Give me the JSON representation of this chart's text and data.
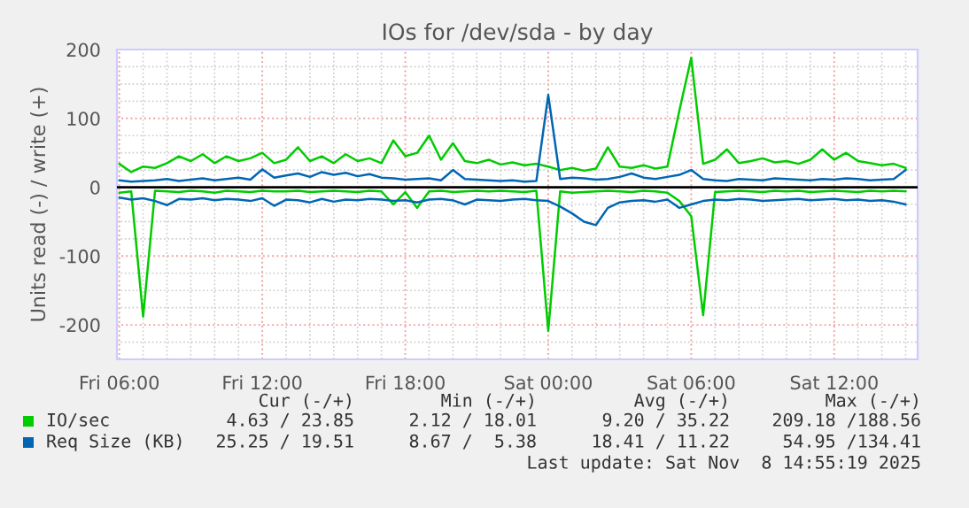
{
  "chart_data": {
    "type": "line",
    "title": "IOs for /dev/sda - by day",
    "ylabel": "Units read (-) / write (+)",
    "x": [
      "2025-11-07T06:00",
      "2025-11-07T06:30",
      "2025-11-07T07:00",
      "2025-11-07T07:30",
      "2025-11-07T08:00",
      "2025-11-07T08:30",
      "2025-11-07T09:00",
      "2025-11-07T09:30",
      "2025-11-07T10:00",
      "2025-11-07T10:30",
      "2025-11-07T11:00",
      "2025-11-07T11:30",
      "2025-11-07T12:00",
      "2025-11-07T12:30",
      "2025-11-07T13:00",
      "2025-11-07T13:30",
      "2025-11-07T14:00",
      "2025-11-07T14:30",
      "2025-11-07T15:00",
      "2025-11-07T15:30",
      "2025-11-07T16:00",
      "2025-11-07T16:30",
      "2025-11-07T17:00",
      "2025-11-07T17:30",
      "2025-11-07T18:00",
      "2025-11-07T18:30",
      "2025-11-07T19:00",
      "2025-11-07T19:30",
      "2025-11-07T20:00",
      "2025-11-07T20:30",
      "2025-11-07T21:00",
      "2025-11-07T21:30",
      "2025-11-07T22:00",
      "2025-11-07T22:30",
      "2025-11-07T23:00",
      "2025-11-07T23:30",
      "2025-11-08T00:00",
      "2025-11-08T00:30",
      "2025-11-08T01:00",
      "2025-11-08T01:30",
      "2025-11-08T02:00",
      "2025-11-08T02:30",
      "2025-11-08T03:00",
      "2025-11-08T03:30",
      "2025-11-08T04:00",
      "2025-11-08T04:30",
      "2025-11-08T05:00",
      "2025-11-08T05:30",
      "2025-11-08T06:00",
      "2025-11-08T06:30",
      "2025-11-08T07:00",
      "2025-11-08T07:30",
      "2025-11-08T08:00",
      "2025-11-08T08:30",
      "2025-11-08T09:00",
      "2025-11-08T09:30",
      "2025-11-08T10:00",
      "2025-11-08T10:30",
      "2025-11-08T11:00",
      "2025-11-08T11:30",
      "2025-11-08T12:00",
      "2025-11-08T12:30",
      "2025-11-08T13:00",
      "2025-11-08T13:30",
      "2025-11-08T14:00",
      "2025-11-08T14:30",
      "2025-11-08T15:00"
    ],
    "series": [
      {
        "name": "IO/sec",
        "color": "#00cc00",
        "values": [
          34,
          22,
          30,
          28,
          35,
          45,
          38,
          48,
          35,
          45,
          38,
          42,
          50,
          35,
          40,
          58,
          38,
          45,
          35,
          48,
          38,
          42,
          35,
          68,
          45,
          50,
          75,
          40,
          64,
          38,
          35,
          40,
          33,
          36,
          32,
          34,
          30,
          25,
          28,
          24,
          27,
          58,
          30,
          28,
          32,
          27,
          30,
          111,
          188,
          34,
          40,
          55,
          35,
          38,
          42,
          36,
          38,
          34,
          40,
          55,
          40,
          50,
          38,
          35,
          32,
          34,
          28
        ]
      },
      {
        "color": "#00cc00",
        "values": [
          -8,
          -6,
          -188,
          -5,
          -6,
          -7,
          -5,
          -6,
          -8,
          -5,
          -6,
          -7,
          -5,
          -6,
          -6,
          -5,
          -7,
          -6,
          -5,
          -6,
          -7,
          -5,
          -6,
          -25,
          -7,
          -30,
          -6,
          -5,
          -7,
          -6,
          -5,
          -6,
          -5,
          -6,
          -7,
          -5,
          -209,
          -6,
          -8,
          -7,
          -6,
          -5,
          -6,
          -7,
          -5,
          -6,
          -8,
          -20,
          -42,
          -186,
          -7,
          -6,
          -5,
          -6,
          -7,
          -5,
          -6,
          -5,
          -7,
          -6,
          -5,
          -6,
          -7,
          -5,
          -6,
          -5,
          -6
        ]
      },
      {
        "name": "Req Size (KB)",
        "color": "#0066b3",
        "values": [
          10,
          8,
          9,
          10,
          12,
          9,
          11,
          13,
          10,
          12,
          14,
          11,
          26,
          14,
          17,
          20,
          15,
          22,
          18,
          21,
          16,
          19,
          14,
          13,
          11,
          12,
          13,
          10,
          25,
          12,
          11,
          10,
          9,
          10,
          8,
          9,
          134,
          12,
          14,
          13,
          11,
          12,
          15,
          20,
          14,
          12,
          15,
          18,
          25,
          12,
          10,
          9,
          12,
          11,
          10,
          13,
          12,
          11,
          10,
          12,
          11,
          13,
          12,
          10,
          11,
          12,
          25
        ]
      },
      {
        "color": "#0066b3",
        "values": [
          -15,
          -18,
          -16,
          -20,
          -26,
          -17,
          -18,
          -16,
          -19,
          -17,
          -18,
          -20,
          -16,
          -27,
          -18,
          -19,
          -22,
          -17,
          -21,
          -18,
          -19,
          -17,
          -18,
          -20,
          -19,
          -22,
          -18,
          -17,
          -19,
          -25,
          -18,
          -19,
          -20,
          -18,
          -17,
          -19,
          -20,
          -28,
          -38,
          -50,
          -55,
          -30,
          -22,
          -20,
          -19,
          -21,
          -18,
          -30,
          -25,
          -20,
          -18,
          -19,
          -17,
          -18,
          -20,
          -19,
          -18,
          -17,
          -19,
          -18,
          -17,
          -19,
          -18,
          -20,
          -19,
          -21,
          -25
        ]
      }
    ],
    "xlim": [
      "2025-11-07T05:54",
      "2025-11-08T15:30"
    ],
    "xticks": [
      {
        "value": "2025-11-07T06:00",
        "label": "Fri 06:00"
      },
      {
        "value": "2025-11-07T12:00",
        "label": "Fri 12:00"
      },
      {
        "value": "2025-11-07T18:00",
        "label": "Fri 18:00"
      },
      {
        "value": "2025-11-08T00:00",
        "label": "Sat 00:00"
      },
      {
        "value": "2025-11-08T06:00",
        "label": "Sat 06:00"
      },
      {
        "value": "2025-11-08T12:00",
        "label": "Sat 12:00"
      }
    ],
    "ylim": [
      -250,
      200
    ],
    "yticks": [
      -200,
      -100,
      0,
      100,
      200
    ],
    "ref_lines": [
      {
        "axis": "y",
        "value": 0,
        "color": "#000000"
      }
    ],
    "grid": true,
    "legend": "bottom",
    "marker": "none",
    "line_style": "solid",
    "annotations": [
      "Cur (-/+)",
      "Min (-/+)",
      "Avg (-/+)",
      "Max (-/+)",
      "4.63 / 23.85",
      "2.12 / 18.01",
      "9.20 / 35.22",
      "209.18 /188.56",
      "25.25 / 19.51",
      "8.67 /  5.38",
      "18.41 / 11.22",
      "54.95 /134.41",
      "Last update: Sat Nov  8 14:55:19 2025"
    ]
  }
}
